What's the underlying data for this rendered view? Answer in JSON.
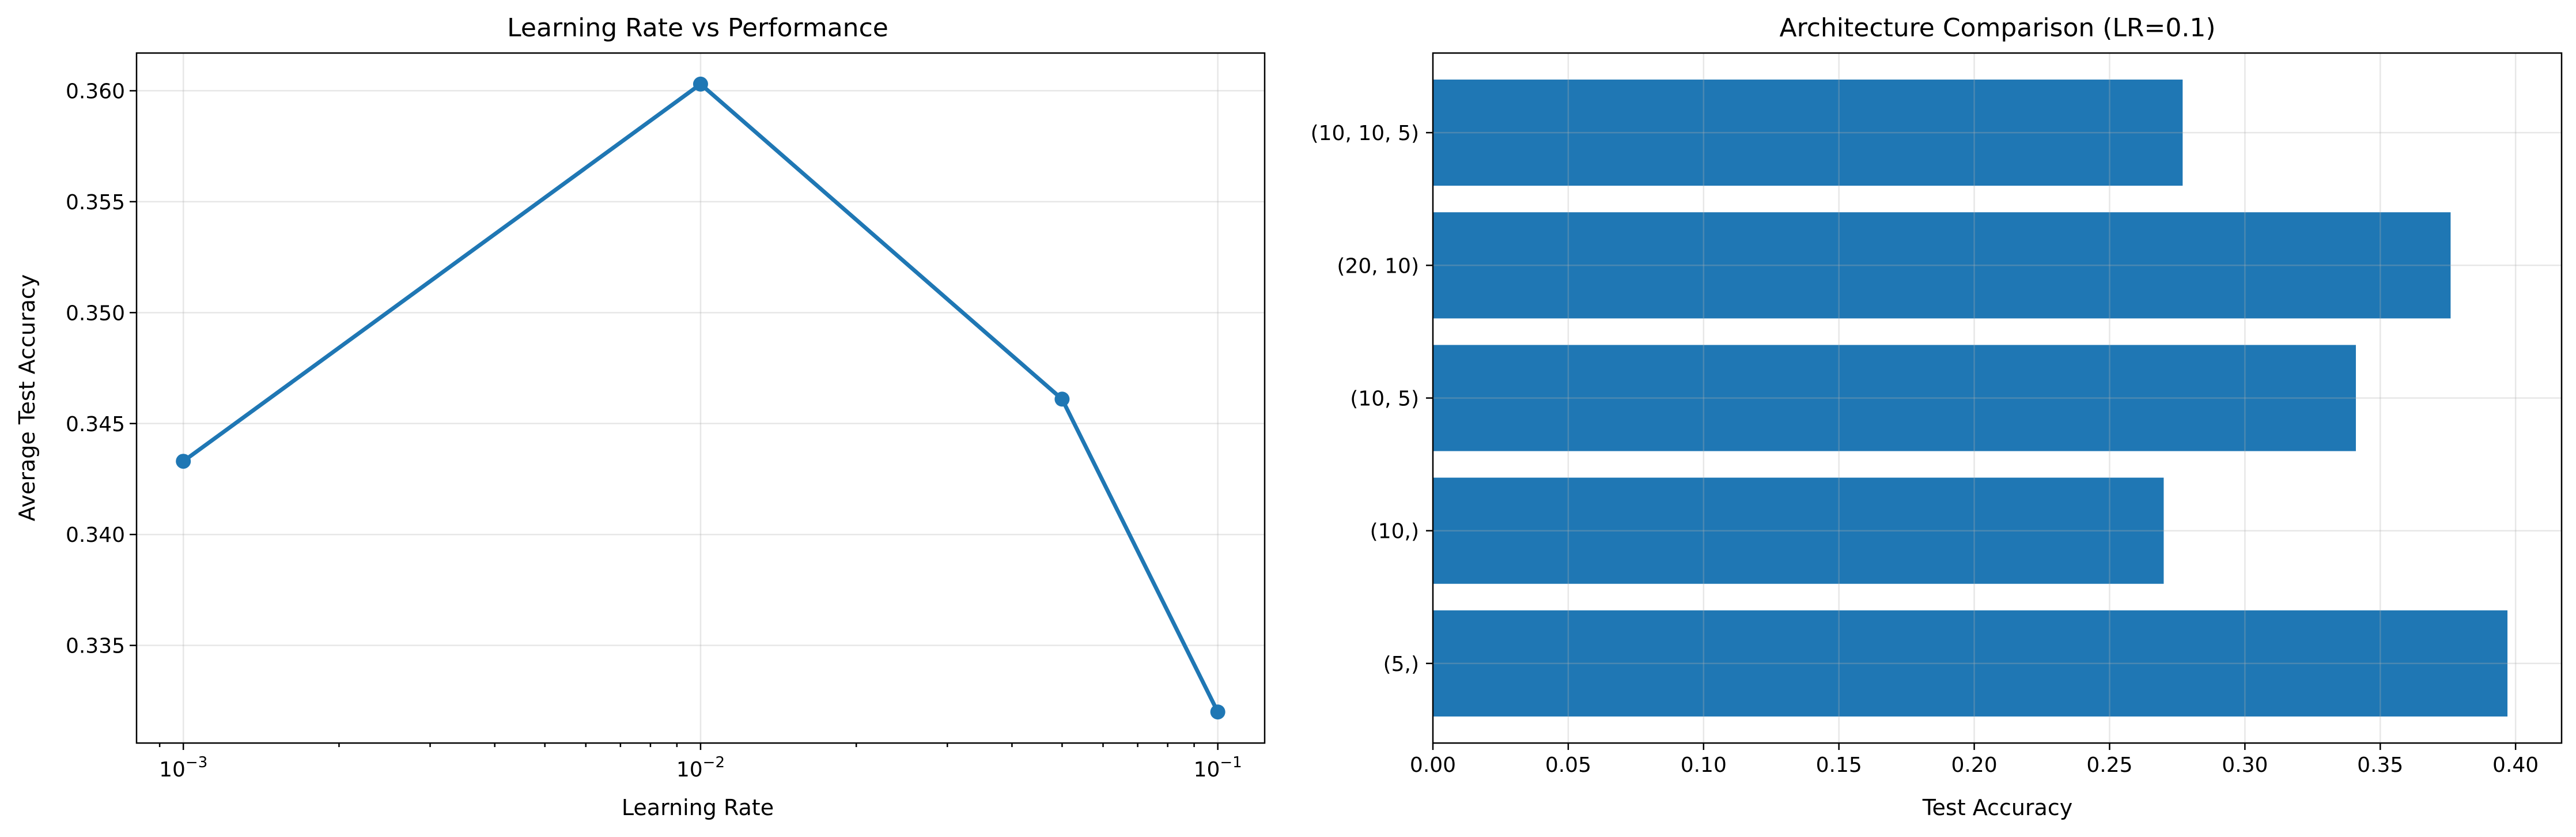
{
  "chart_data": [
    {
      "type": "line",
      "title": "Learning Rate vs Performance",
      "xlabel": "Learning Rate",
      "ylabel": "Average Test Accuracy",
      "xscale": "log",
      "x": [
        0.001,
        0.01,
        0.05,
        0.1
      ],
      "series": [
        {
          "values": [
            0.3433,
            0.3603,
            0.3461,
            0.332
          ]
        }
      ],
      "xticks": [
        {
          "value": 0.001,
          "base": "10",
          "exp": "−3"
        },
        {
          "value": 0.01,
          "base": "10",
          "exp": "−2"
        },
        {
          "value": 0.1,
          "base": "10",
          "exp": "−1"
        }
      ],
      "yticks": [
        "0.335",
        "0.340",
        "0.345",
        "0.350",
        "0.355",
        "0.360"
      ],
      "xlim": [
        0.000812,
        0.1232
      ],
      "ylim": [
        0.3306,
        0.3617
      ],
      "grid": true,
      "color": "#1f77b4"
    },
    {
      "type": "bar",
      "orientation": "horizontal",
      "title": "Architecture Comparison (LR=0.1)",
      "xlabel": "Test Accuracy",
      "ylabel": "",
      "categories": [
        "(5,)",
        "(10,)",
        "(10, 5)",
        "(20, 10)",
        "(10, 10, 5)"
      ],
      "values": [
        0.397,
        0.27,
        0.341,
        0.376,
        0.277
      ],
      "xticks": [
        "0.00",
        "0.05",
        "0.10",
        "0.15",
        "0.20",
        "0.25",
        "0.30",
        "0.35",
        "0.40"
      ],
      "xlim": [
        0,
        0.417
      ],
      "grid": true,
      "color": "#1f77b4"
    }
  ]
}
